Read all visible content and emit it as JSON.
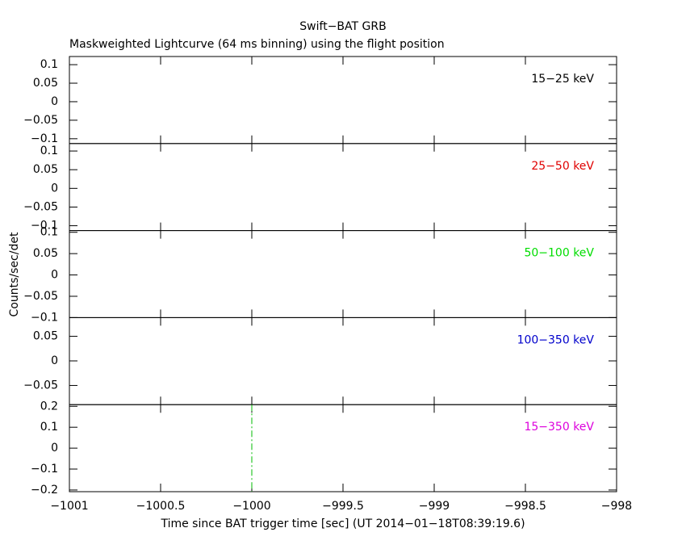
{
  "title": "Swift−BAT GRB",
  "subtitle": "Maskweighted Lightcurve (64 ms binning) using the flight position",
  "ylabel": "Counts/sec/det",
  "xlabel": "Time since BAT trigger time [sec] (UT 2014−01−18T08:39:19.6)",
  "chart_data": [
    {
      "type": "line",
      "label": "15−25 keV",
      "label_color": "#000000",
      "xlim": [
        -1001,
        -998
      ],
      "xticks": [
        {
          "value": -1001,
          "label": "−1001"
        },
        {
          "value": -1000.5,
          "label": "−1000.5"
        },
        {
          "value": -1000,
          "label": "−1000"
        },
        {
          "value": -999.5,
          "label": "−999.5"
        },
        {
          "value": -999,
          "label": "−999"
        },
        {
          "value": -998.5,
          "label": "−998.5"
        },
        {
          "value": -998,
          "label": "−998"
        }
      ],
      "ylim": [
        -0.113,
        0.122
      ],
      "yticks": [
        0.1,
        0.05,
        0,
        {
          "value": -0.05,
          "label": "−0.05"
        },
        {
          "value": -0.1,
          "label": "−0.1"
        }
      ]
    },
    {
      "type": "line",
      "label": "25−50 keV",
      "label_color": "#e00000",
      "xlim": [
        -1001,
        -998
      ],
      "xticks": [
        {
          "value": -1001,
          "label": "−1001"
        },
        {
          "value": -1000.5,
          "label": "−1000.5"
        },
        {
          "value": -1000,
          "label": "−1000"
        },
        {
          "value": -999.5,
          "label": "−999.5"
        },
        {
          "value": -999,
          "label": "−999"
        },
        {
          "value": -998.5,
          "label": "−998.5"
        },
        {
          "value": -998,
          "label": "−998"
        }
      ],
      "ylim": [
        -0.113,
        0.12
      ],
      "yticks": [
        0.1,
        0.05,
        0,
        {
          "value": -0.05,
          "label": "−0.05"
        },
        {
          "value": -0.1,
          "label": "−0.1"
        }
      ]
    },
    {
      "type": "line",
      "label": "50−100 keV",
      "label_color": "#00dd00",
      "xlim": [
        -1001,
        -998
      ],
      "xticks": [
        {
          "value": -1001,
          "label": "−1001"
        },
        {
          "value": -1000.5,
          "label": "−1000.5"
        },
        {
          "value": -1000,
          "label": "−1000"
        },
        {
          "value": -999.5,
          "label": "−999.5"
        },
        {
          "value": -999,
          "label": "−999"
        },
        {
          "value": -998.5,
          "label": "−998.5"
        },
        {
          "value": -998,
          "label": "−998"
        }
      ],
      "ylim": [
        -0.1,
        0.104
      ],
      "yticks": [
        0.1,
        0.05,
        0,
        {
          "value": -0.05,
          "label": "−0.05"
        },
        {
          "value": -0.1,
          "label": "−0.1"
        }
      ]
    },
    {
      "type": "line",
      "label": "100−350 keV",
      "label_color": "#0000cc",
      "xlim": [
        -1001,
        -998
      ],
      "xticks": [
        {
          "value": -1001,
          "label": "−1001"
        },
        {
          "value": -1000.5,
          "label": "−1000.5"
        },
        {
          "value": -1000,
          "label": "−1000"
        },
        {
          "value": -999.5,
          "label": "−999.5"
        },
        {
          "value": -999,
          "label": "−999"
        },
        {
          "value": -998.5,
          "label": "−998.5"
        },
        {
          "value": -998,
          "label": "−998"
        }
      ],
      "ylim": [
        -0.089,
        0.088
      ],
      "yticks": [
        0.05,
        0,
        {
          "value": -0.05,
          "label": "−0.05"
        }
      ]
    },
    {
      "type": "line",
      "label": "15−350 keV",
      "label_color": "#dd00dd",
      "xlim": [
        -1001,
        -998
      ],
      "xticks": [
        {
          "value": -1001,
          "label": "−1001"
        },
        {
          "value": -1000.5,
          "label": "−1000.5"
        },
        {
          "value": -1000,
          "label": "−1000"
        },
        {
          "value": -999.5,
          "label": "−999.5"
        },
        {
          "value": -999,
          "label": "−999"
        },
        {
          "value": -998.5,
          "label": "−998.5"
        },
        {
          "value": -998,
          "label": "−998"
        }
      ],
      "ylim": [
        -0.208,
        0.208
      ],
      "yticks": [
        0.2,
        0.1,
        0,
        {
          "value": -0.1,
          "label": "−0.1"
        },
        {
          "value": -0.2,
          "label": "−0.2"
        }
      ],
      "vline": -1000,
      "vline_color": "#00bb00"
    }
  ]
}
